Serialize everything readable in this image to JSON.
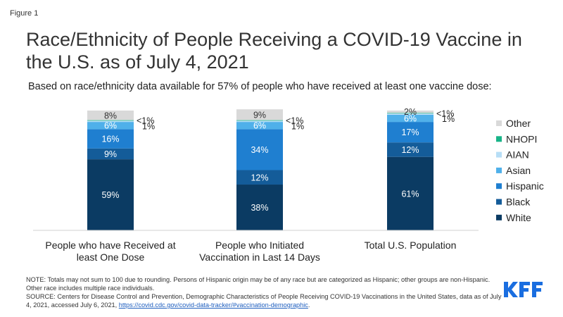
{
  "figure_label": "Figure 1",
  "title": "Race/Ethnicity of People Receiving a COVID-19 Vaccine in the U.S. as of July 4, 2021",
  "subtitle": "Based on race/ethnicity data available for 57% of people who have received at least one vaccine dose:",
  "colors": {
    "White": "#0b3b63",
    "Black": "#145c99",
    "Hispanic": "#1f7fd0",
    "Asian": "#4fb0ea",
    "AIAN": "#b7def6",
    "NHOPI": "#18b488",
    "Other": "#d9d9d9"
  },
  "chart_data": {
    "type": "bar",
    "stacked": true,
    "orientation": "vertical",
    "ylim": [
      0,
      100
    ],
    "grid": false,
    "legend_position": "right",
    "categories": [
      "People who have Received at least One Dose",
      "People who Initiated Vaccination in Last 14 Days",
      "Total U.S. Population"
    ],
    "category_lines": [
      [
        "People who have Received at",
        "least One Dose"
      ],
      [
        "People who Initiated",
        "Vaccination in Last 14 Days"
      ],
      [
        "Total U.S. Population"
      ]
    ],
    "series": [
      {
        "name": "White",
        "values": [
          59,
          38,
          61
        ],
        "labels": [
          "59%",
          "38%",
          "61%"
        ]
      },
      {
        "name": "Black",
        "values": [
          9,
          12,
          12
        ],
        "labels": [
          "9%",
          "12%",
          "12%"
        ]
      },
      {
        "name": "Hispanic",
        "values": [
          16,
          34,
          17
        ],
        "labels": [
          "16%",
          "34%",
          "17%"
        ]
      },
      {
        "name": "Asian",
        "values": [
          6,
          6,
          6
        ],
        "labels": [
          "6%",
          "6%",
          "6%"
        ]
      },
      {
        "name": "AIAN",
        "values": [
          1,
          1,
          1
        ],
        "labels": [
          "1%",
          "1%",
          "1%"
        ]
      },
      {
        "name": "NHOPI",
        "values": [
          0.3,
          0.3,
          0.3
        ],
        "labels": [
          "<1%",
          "<1%",
          "<1%"
        ]
      },
      {
        "name": "Other",
        "values": [
          8,
          9,
          2
        ],
        "labels": [
          "8%",
          "9%",
          "2%"
        ]
      }
    ],
    "legend": [
      "Other",
      "NHOPI",
      "AIAN",
      "Asian",
      "Hispanic",
      "Black",
      "White"
    ]
  },
  "note_text": "NOTE: Totals may not sum to 100 due to rounding. Persons of Hispanic origin may be of any race but are categorized as Hispanic; other groups are non-Hispanic. Other race includes multiple race individuals.",
  "source_text": "SOURCE: Centers for Disease Control and Prevention, Demographic Characteristics of People Receiving COVID-19 Vaccinations in the United States, data as of July 4, 2021, accessed July 6, 2021, ",
  "source_link": "https://covid.cdc.gov/covid-data-tracker/#vaccination-demographic",
  "source_end": ".",
  "logo_text": "KFF"
}
